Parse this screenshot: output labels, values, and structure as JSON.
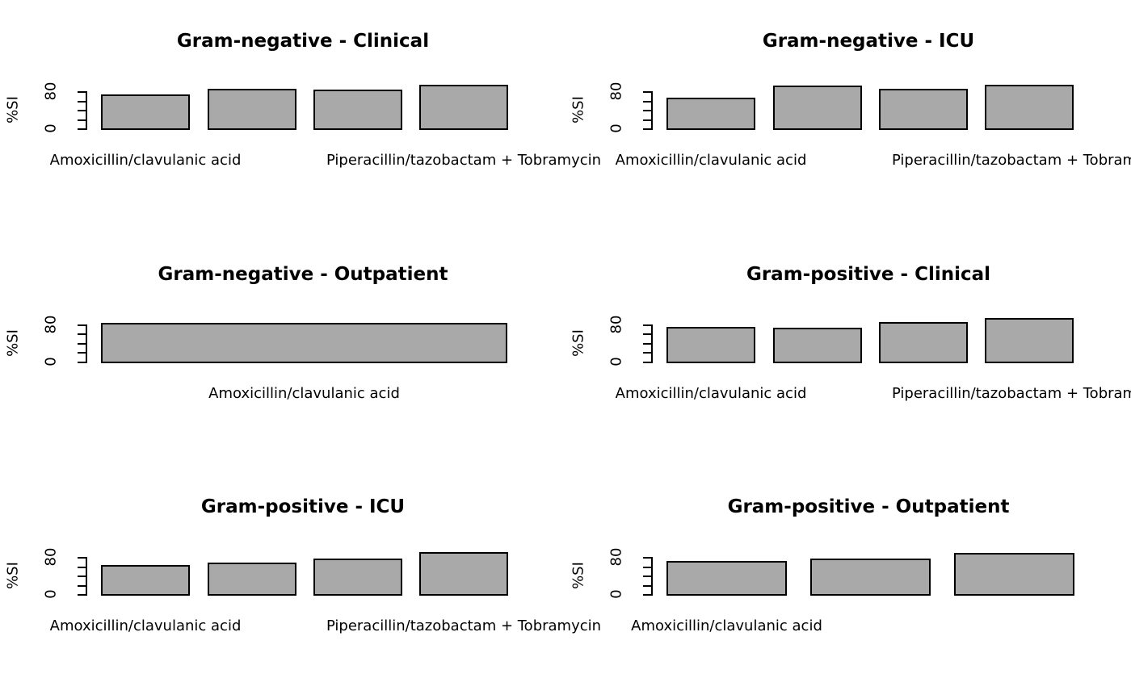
{
  "figure": {
    "background_color": "#ffffff",
    "bar_fill_color": "#a9a9a9",
    "bar_border_color": "#000000",
    "text_color": "#000000",
    "grid": "3 rows x 2 columns of barplots"
  },
  "chart_data": [
    {
      "type": "bar",
      "title": "Gram-negative - Clinical",
      "ylabel": "%SI",
      "ylim": [
        0,
        105
      ],
      "yticks": [
        0,
        20,
        40,
        60,
        80
      ],
      "ytick_labels_shown": [
        "0",
        "80"
      ],
      "grid_lines": false,
      "values": [
        77,
        89,
        87,
        97
      ],
      "visible_xlabels": [
        {
          "text": "Amoxicillin/clavulanic acid",
          "bar_index": 0
        },
        {
          "text": "Piperacillin/tazobactam + Tobramycin",
          "bar_index": 3
        }
      ]
    },
    {
      "type": "bar",
      "title": "Gram-negative - ICU",
      "ylabel": "%SI",
      "ylim": [
        0,
        105
      ],
      "yticks": [
        0,
        20,
        40,
        60,
        80
      ],
      "ytick_labels_shown": [
        "0",
        "80"
      ],
      "grid_lines": false,
      "values": [
        70,
        95,
        88,
        98
      ],
      "visible_xlabels": [
        {
          "text": "Amoxicillin/clavulanic acid",
          "bar_index": 0
        },
        {
          "text": "Piperacillin/tazobactam + Tobramycin",
          "bar_index": 3
        }
      ]
    },
    {
      "type": "bar",
      "title": "Gram-negative - Outpatient",
      "ylabel": "%SI",
      "ylim": [
        0,
        105
      ],
      "yticks": [
        0,
        20,
        40,
        60,
        80
      ],
      "ytick_labels_shown": [
        "0",
        "80"
      ],
      "grid_lines": false,
      "values": [
        86
      ],
      "visible_xlabels": [
        {
          "text": "Amoxicillin/clavulanic acid",
          "bar_index": 0
        }
      ]
    },
    {
      "type": "bar",
      "title": "Gram-positive - Clinical",
      "ylabel": "%SI",
      "ylim": [
        0,
        105
      ],
      "yticks": [
        0,
        20,
        40,
        60,
        80
      ],
      "ytick_labels_shown": [
        "0",
        "80"
      ],
      "grid_lines": false,
      "values": [
        78,
        76,
        88,
        97
      ],
      "visible_xlabels": [
        {
          "text": "Amoxicillin/clavulanic acid",
          "bar_index": 0
        },
        {
          "text": "Piperacillin/tazobactam + Tobramycin",
          "bar_index": 3
        }
      ]
    },
    {
      "type": "bar",
      "title": "Gram-positive - ICU",
      "ylabel": "%SI",
      "ylim": [
        0,
        105
      ],
      "yticks": [
        0,
        20,
        40,
        60,
        80
      ],
      "ytick_labels_shown": [
        "0",
        "80"
      ],
      "grid_lines": false,
      "values": [
        67,
        71,
        80,
        95
      ],
      "visible_xlabels": [
        {
          "text": "Amoxicillin/clavulanic acid",
          "bar_index": 0
        },
        {
          "text": "Piperacillin/tazobactam + Tobramycin",
          "bar_index": 3
        }
      ]
    },
    {
      "type": "bar",
      "title": "Gram-positive - Outpatient",
      "ylabel": "%SI",
      "ylim": [
        0,
        105
      ],
      "yticks": [
        0,
        20,
        40,
        60,
        80
      ],
      "ytick_labels_shown": [
        "0",
        "80"
      ],
      "grid_lines": false,
      "values": [
        75,
        80,
        92
      ],
      "visible_xlabels": [
        {
          "text": "Amoxicillin/clavulanic acid",
          "bar_index": 0
        }
      ]
    }
  ]
}
